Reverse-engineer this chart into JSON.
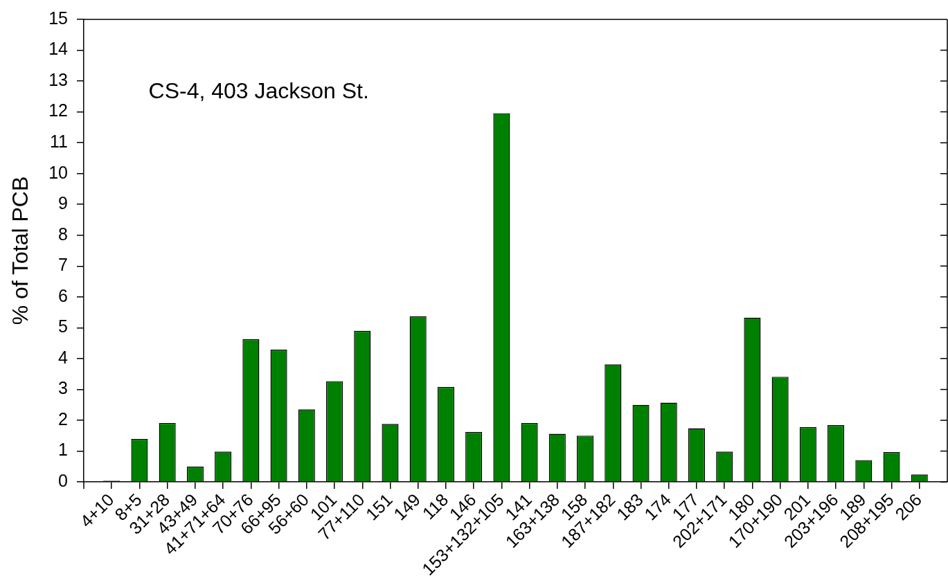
{
  "chart_data": {
    "type": "bar",
    "ylabel": "% of Total PCB",
    "annotations": [
      "CS-4, 403 Jackson St."
    ],
    "categories": [
      "4+10",
      "8+5",
      "31+28",
      "43+49",
      "41+71+64",
      "70+76",
      "66+95",
      "56+60",
      "101",
      "77+110",
      "151",
      "149",
      "118",
      "146",
      "153+132+105",
      "141",
      "163+138",
      "158",
      "187+182",
      "183",
      "174",
      "177",
      "202+171",
      "180",
      "170+190",
      "201",
      "203+196",
      "189",
      "208+195",
      "206"
    ],
    "values": [
      0.04,
      1.39,
      1.91,
      0.5,
      0.98,
      4.63,
      4.29,
      2.35,
      3.27,
      4.9,
      1.88,
      5.37,
      3.08,
      1.62,
      11.96,
      1.91,
      1.56,
      1.5,
      3.81,
      2.5,
      2.57,
      1.74,
      0.98,
      5.33,
      3.41,
      1.78,
      1.84,
      0.71,
      0.97,
      0.24
    ],
    "color": "#008000",
    "ylim": [
      0,
      15
    ],
    "yticks": [
      0,
      1,
      2,
      3,
      4,
      5,
      6,
      7,
      8,
      9,
      10,
      11,
      12,
      13,
      14,
      15
    ],
    "grid": false,
    "legend": false
  }
}
